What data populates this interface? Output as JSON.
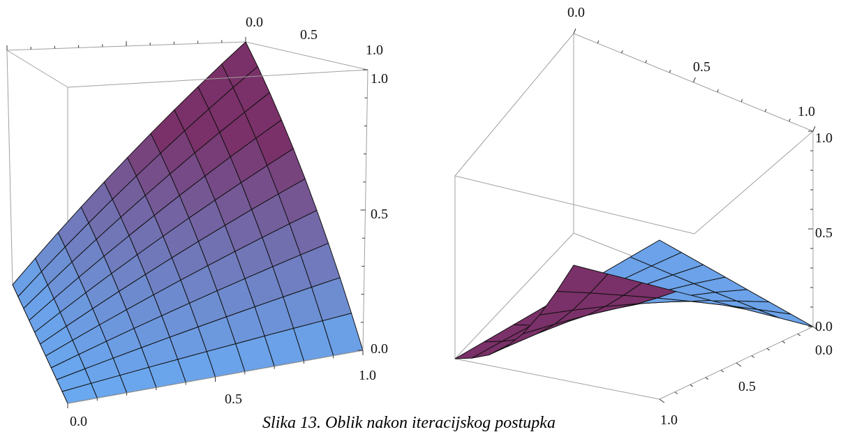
{
  "caption": "Slika 13. Oblik nakon iteracijskog postupka",
  "colors": {
    "low_surface": "#6aa8f0",
    "high_surface": "#7a3068",
    "mesh_line": "#111111",
    "box_edge": "#a0a0a0"
  },
  "chart_data": [
    {
      "type": "surface",
      "title": "",
      "xlabel": "",
      "ylabel": "",
      "zlabel": "",
      "xlim": [
        0,
        1
      ],
      "ylim": [
        0,
        1
      ],
      "zlim": [
        0,
        1
      ],
      "grid": false,
      "mesh": 10,
      "function": "z = x*y",
      "surface_samples": [
        {
          "x": 0,
          "y": 0,
          "z": 0
        },
        {
          "x": 0.5,
          "y": 0.5,
          "z": 0.25
        },
        {
          "x": 1,
          "y": 1,
          "z": 1
        },
        {
          "x": 1,
          "y": 0,
          "z": 0
        },
        {
          "x": 0,
          "y": 1,
          "z": 0
        }
      ],
      "tick_labels": [
        {
          "axis": "x",
          "text": "0.0"
        },
        {
          "axis": "x",
          "text": "0.5"
        },
        {
          "axis": "x",
          "text": "1.0"
        },
        {
          "axis": "y",
          "text": "0.0"
        },
        {
          "axis": "y",
          "text": "0.5"
        },
        {
          "axis": "y",
          "text": "1.0"
        },
        {
          "axis": "z",
          "text": "0.0"
        },
        {
          "axis": "z",
          "text": "0.5"
        },
        {
          "axis": "z",
          "text": "1.0"
        }
      ]
    },
    {
      "type": "surface",
      "title": "",
      "xlabel": "",
      "ylabel": "",
      "zlabel": "",
      "xlim": [
        0,
        1
      ],
      "ylim": [
        0,
        1
      ],
      "zlim": [
        0,
        1
      ],
      "grid": false,
      "mesh": 7,
      "function": "z = x*(1-y)",
      "surface_samples": [
        {
          "x": 0,
          "y": 0,
          "z": 0
        },
        {
          "x": 1,
          "y": 0,
          "z": 1
        },
        {
          "x": 0.5,
          "y": 0.5,
          "z": 0.25
        },
        {
          "x": 1,
          "y": 1,
          "z": 0
        },
        {
          "x": 0,
          "y": 1,
          "z": 0
        }
      ],
      "tick_labels": [
        {
          "axis": "y",
          "text": "0.0"
        },
        {
          "axis": "y",
          "text": "0.5"
        },
        {
          "axis": "y",
          "text": "1.0"
        },
        {
          "axis": "x",
          "text": "0.0"
        },
        {
          "axis": "x",
          "text": "0.5"
        },
        {
          "axis": "x",
          "text": "1.0"
        },
        {
          "axis": "z",
          "text": "0.0"
        },
        {
          "axis": "z",
          "text": "0.5"
        },
        {
          "axis": "z",
          "text": "1.0"
        }
      ]
    }
  ]
}
